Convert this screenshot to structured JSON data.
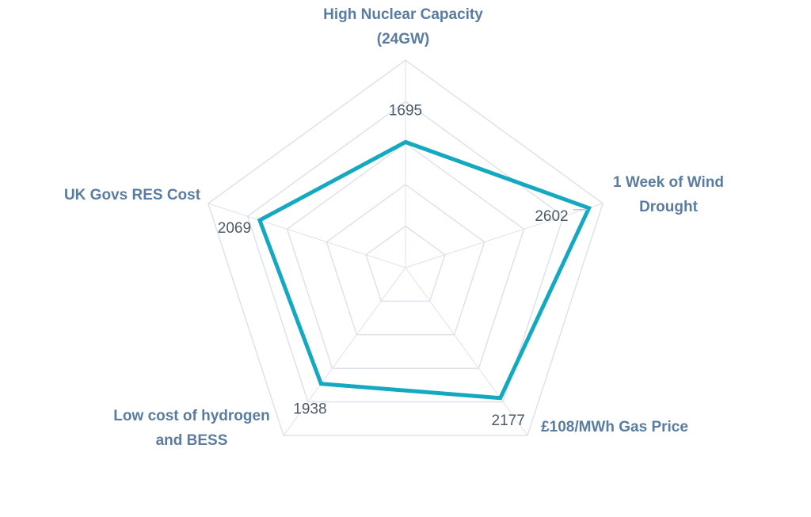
{
  "chart_data": {
    "type": "radar",
    "categories": [
      [
        "High Nuclear Capacity",
        "(24GW)"
      ],
      [
        "1 Week of Wind",
        "Drought"
      ],
      [
        "£108/MWh Gas Price"
      ],
      [
        "Low cost of hydrogen",
        "and BESS"
      ],
      [
        "UK Govs RES Cost"
      ]
    ],
    "series": [
      {
        "values": [
          1695,
          2602,
          2177,
          1938,
          2069
        ],
        "color": "#14a9c0"
      }
    ],
    "data_labels": [
      "1695",
      "2602",
      "2177",
      "1938",
      "2069"
    ],
    "rmin": 0,
    "rmax": 2800,
    "grid_rings": 5,
    "grid_color": "#dde3ea"
  }
}
